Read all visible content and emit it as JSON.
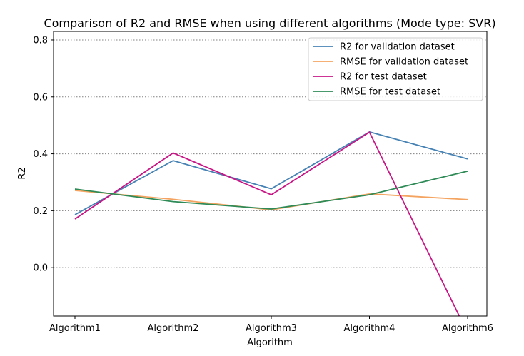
{
  "chart_data": {
    "type": "line",
    "title": "Comparison of R2 and RMSE when using different algorithms (Mode type: SVR)",
    "xlabel": "Algorithm",
    "ylabel": "R2",
    "categories": [
      "Algorithm1",
      "Algorithm2",
      "Algorithm3",
      "Algorithm4",
      "Algorithm6"
    ],
    "ylim": [
      -0.17,
      0.83
    ],
    "yticks": [
      0.0,
      0.2,
      0.4,
      0.6,
      0.8
    ],
    "ytick_labels": [
      "0.0",
      "0.2",
      "0.4",
      "0.6",
      "0.8"
    ],
    "grid": "horizontal-dotted",
    "legend_position": "top-right",
    "series": [
      {
        "name": "R2 for validation dataset",
        "color": "#4682b4",
        "values": [
          0.186,
          0.376,
          0.277,
          0.477,
          0.382
        ]
      },
      {
        "name": "RMSE for validation dataset",
        "color": "#f4a460",
        "values": [
          0.271,
          0.24,
          0.203,
          0.259,
          0.239
        ]
      },
      {
        "name": "R2 for test dataset",
        "color": "#c71585",
        "values": [
          0.171,
          0.403,
          0.256,
          0.476,
          -0.23
        ]
      },
      {
        "name": "RMSE for test dataset",
        "color": "#2e8b57",
        "values": [
          0.276,
          0.232,
          0.206,
          0.256,
          0.339
        ]
      }
    ]
  }
}
